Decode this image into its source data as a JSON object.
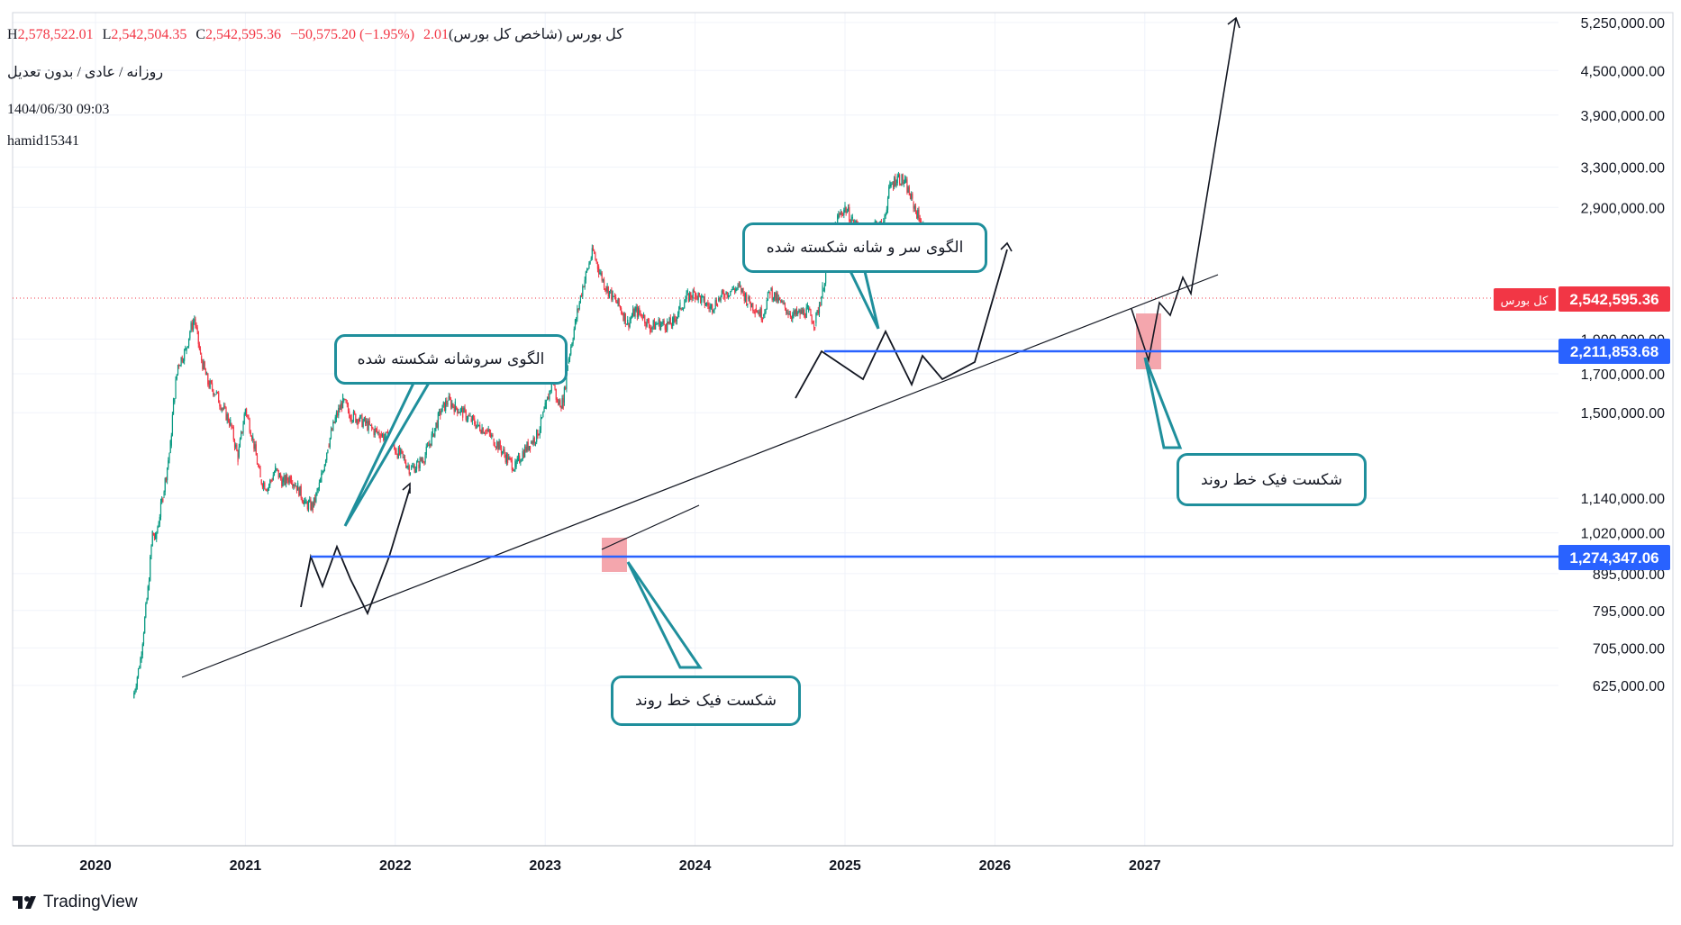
{
  "header": {
    "symbol": "کل بورس (شاخص کل بورس)",
    "open_partial": "2.01",
    "h_key": "H",
    "h_val": "2,578,522.01",
    "l_key": "L",
    "l_val": "2,542,504.35",
    "c_key": "C",
    "c_val": "2,542,595.36",
    "change": "−50,575.20 (−1.95%)",
    "subtitle": "روزانه / عادی / بدون تعدیل",
    "datetime": "1404/06/30 09:03",
    "author": "hamid15341"
  },
  "branding": {
    "logo_text": "TradingView"
  },
  "annotations": {
    "callout_hs_1": "الگوی سروشانه شکسته شده",
    "callout_hs_2": "الگوی سر و شانه شکسته شده",
    "callout_fake_1": "شکست فیک خط روند",
    "callout_fake_2": "شکست فیک خط روند"
  },
  "price_tags": {
    "last": {
      "label": "کل بورس",
      "value": "2,542,595.36",
      "color": "#f23645"
    },
    "level_upper": {
      "value": "2,211,853.68",
      "color": "#2962ff"
    },
    "level_lower": {
      "value": "1,274,347.06",
      "color": "#2962ff"
    }
  },
  "colors": {
    "up": "#089981",
    "down": "#f23645",
    "level": "#2962ff",
    "callout": "#1f8f9c",
    "highlight": "#f4a6ad"
  },
  "chart_data": {
    "type": "line",
    "scale": "log",
    "x_ticks": [
      "2020",
      "2021",
      "2022",
      "2023",
      "2024",
      "2025",
      "2026",
      "2027"
    ],
    "y_ticks": [
      "5,250,000.00",
      "4,500,000.00",
      "3,900,000.00",
      "3,300,000.00",
      "2,900,000.00",
      "1,900,000.00",
      "1,700,000.00",
      "1,500,000.00",
      "1,140,000.00",
      "1,020,000.00",
      "895,000.00",
      "795,000.00",
      "705,000.00",
      "625,000.00"
    ],
    "ylim": [
      590000,
      5500000
    ],
    "xlim": [
      2019.4,
      2028.7
    ],
    "horizontal_levels": [
      2211853.68,
      1274347.06
    ],
    "last_price": 2542595.36,
    "series": [
      {
        "values": [
          [
            2020.25,
            600000
          ],
          [
            2020.3,
            680000
          ],
          [
            2020.35,
            850000
          ],
          [
            2020.38,
            1020000
          ],
          [
            2020.4,
            1000000
          ],
          [
            2020.45,
            1150000
          ],
          [
            2020.5,
            1350000
          ],
          [
            2020.52,
            1550000
          ],
          [
            2020.55,
            1750000
          ],
          [
            2020.6,
            1830000
          ],
          [
            2020.63,
            1950000
          ],
          [
            2020.66,
            2030000
          ],
          [
            2020.7,
            1800000
          ],
          [
            2020.75,
            1650000
          ],
          [
            2020.8,
            1600000
          ],
          [
            2020.85,
            1520000
          ],
          [
            2020.9,
            1450000
          ],
          [
            2020.95,
            1300000
          ],
          [
            2021.0,
            1520000
          ],
          [
            2021.05,
            1380000
          ],
          [
            2021.1,
            1210000
          ],
          [
            2021.15,
            1180000
          ],
          [
            2021.2,
            1250000
          ],
          [
            2021.25,
            1200000
          ],
          [
            2021.3,
            1220000
          ],
          [
            2021.35,
            1180000
          ],
          [
            2021.4,
            1120000
          ],
          [
            2021.45,
            1110000
          ],
          [
            2021.5,
            1200000
          ],
          [
            2021.55,
            1350000
          ],
          [
            2021.6,
            1470000
          ],
          [
            2021.65,
            1560000
          ],
          [
            2021.7,
            1490000
          ],
          [
            2021.75,
            1470000
          ],
          [
            2021.8,
            1450000
          ],
          [
            2021.85,
            1420000
          ],
          [
            2021.9,
            1400000
          ],
          [
            2021.95,
            1380000
          ],
          [
            2022.0,
            1330000
          ],
          [
            2022.05,
            1300000
          ],
          [
            2022.1,
            1250000
          ],
          [
            2022.15,
            1270000
          ],
          [
            2022.2,
            1310000
          ],
          [
            2022.25,
            1400000
          ],
          [
            2022.3,
            1500000
          ],
          [
            2022.35,
            1560000
          ],
          [
            2022.4,
            1530000
          ],
          [
            2022.45,
            1500000
          ],
          [
            2022.5,
            1470000
          ],
          [
            2022.55,
            1440000
          ],
          [
            2022.6,
            1420000
          ],
          [
            2022.65,
            1380000
          ],
          [
            2022.7,
            1340000
          ],
          [
            2022.75,
            1290000
          ],
          [
            2022.8,
            1260000
          ],
          [
            2022.85,
            1320000
          ],
          [
            2022.9,
            1360000
          ],
          [
            2022.95,
            1400000
          ],
          [
            2023.0,
            1520000
          ],
          [
            2023.05,
            1670000
          ],
          [
            2023.08,
            1550000
          ],
          [
            2023.12,
            1550000
          ],
          [
            2023.15,
            1760000
          ],
          [
            2023.2,
            2000000
          ],
          [
            2023.25,
            2250000
          ],
          [
            2023.3,
            2450000
          ],
          [
            2023.32,
            2520000
          ],
          [
            2023.35,
            2400000
          ],
          [
            2023.4,
            2250000
          ],
          [
            2023.45,
            2180000
          ],
          [
            2023.5,
            2100000
          ],
          [
            2023.55,
            2000000
          ],
          [
            2023.6,
            2080000
          ],
          [
            2023.65,
            2050000
          ],
          [
            2023.7,
            1970000
          ],
          [
            2023.75,
            2000000
          ],
          [
            2023.8,
            1990000
          ],
          [
            2023.85,
            2000000
          ],
          [
            2023.9,
            2100000
          ],
          [
            2023.95,
            2180000
          ],
          [
            2024.0,
            2200000
          ],
          [
            2024.05,
            2150000
          ],
          [
            2024.1,
            2100000
          ],
          [
            2024.15,
            2150000
          ],
          [
            2024.2,
            2200000
          ],
          [
            2024.25,
            2230000
          ],
          [
            2024.3,
            2240000
          ],
          [
            2024.35,
            2150000
          ],
          [
            2024.4,
            2100000
          ],
          [
            2024.45,
            2050000
          ],
          [
            2024.5,
            2220000
          ],
          [
            2024.55,
            2150000
          ],
          [
            2024.6,
            2100000
          ],
          [
            2024.65,
            2050000
          ],
          [
            2024.7,
            2060000
          ],
          [
            2024.75,
            2080000
          ],
          [
            2024.8,
            2000000
          ],
          [
            2024.85,
            2220000
          ],
          [
            2024.9,
            2550000
          ],
          [
            2024.95,
            2800000
          ],
          [
            2025.0,
            2900000
          ],
          [
            2025.05,
            2780000
          ],
          [
            2025.1,
            2700000
          ],
          [
            2025.15,
            2650000
          ],
          [
            2025.2,
            2750000
          ],
          [
            2025.25,
            2720000
          ],
          [
            2025.3,
            3100000
          ],
          [
            2025.35,
            3200000
          ],
          [
            2025.4,
            3140000
          ],
          [
            2025.45,
            2950000
          ],
          [
            2025.5,
            2780000
          ],
          [
            2025.55,
            2640000
          ],
          [
            2025.6,
            2560000
          ],
          [
            2025.65,
            2440000
          ],
          [
            2025.7,
            2520000
          ],
          [
            2025.72,
            2578522.01
          ],
          [
            2025.73,
            2542595.36
          ]
        ]
      }
    ]
  }
}
